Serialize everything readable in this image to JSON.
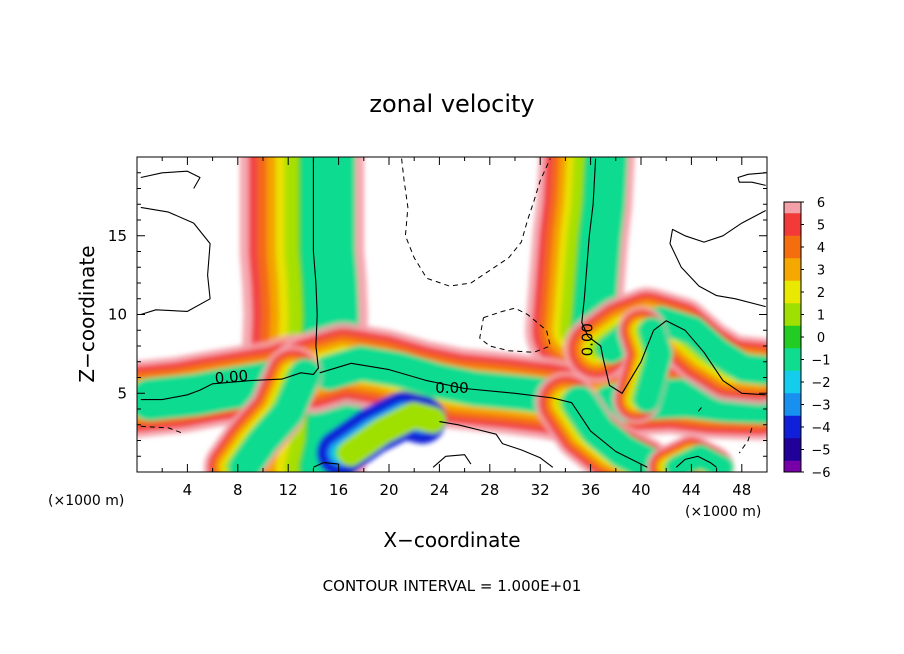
{
  "chart_data": {
    "type": "heatmap",
    "title": "zonal velocity",
    "xlabel": "X−coordinate",
    "ylabel": "Z−coordinate",
    "x_unit_label": "(×1000 m)",
    "y_unit_label": "(×1000 m)",
    "footer": "CONTOUR INTERVAL = 1.000E+01",
    "xlim": [
      0,
      50
    ],
    "ylim": [
      0,
      20
    ],
    "x_ticks": [
      4,
      8,
      12,
      16,
      20,
      24,
      28,
      32,
      36,
      40,
      44,
      48
    ],
    "x_tick_labels": [
      "4",
      "8",
      "12",
      "16",
      "20",
      "24",
      "28",
      "32",
      "36",
      "40",
      "44",
      "48"
    ],
    "y_ticks": [
      5,
      10,
      15
    ],
    "y_tick_labels": [
      "5",
      "10",
      "15"
    ],
    "contour_labels": [
      {
        "text": "0.00",
        "x": 7.5,
        "y": 6.0,
        "rotate": -5
      },
      {
        "text": "0.00",
        "x": 25.0,
        "y": 5.3,
        "rotate": 0
      },
      {
        "text": "0.00",
        "x": 35.8,
        "y": 8.4,
        "rotate": -90
      }
    ],
    "colorbar": {
      "levels": [
        6,
        5,
        4,
        3,
        2,
        1,
        0,
        -1,
        -2,
        -3,
        -4,
        -5,
        -6
      ],
      "labels": [
        "6",
        "5",
        "4",
        "3",
        "2",
        "1",
        "0",
        "−1",
        "−2",
        "−3",
        "−4",
        "−5",
        "−6"
      ],
      "colors": [
        "#f4a0a8",
        "#f23a38",
        "#f46e10",
        "#f4a800",
        "#e8e800",
        "#a0e000",
        "#22cc22",
        "#10dc90",
        "#14ccec",
        "#1890f0",
        "#1020d8",
        "#200098",
        "#7800a8"
      ]
    },
    "bands": [
      {
        "name": "left-vertical-plume",
        "center": [
          [
            14.0,
            0.3
          ],
          [
            14.5,
            2
          ],
          [
            14.6,
            4
          ],
          [
            14.4,
            6
          ],
          [
            14.2,
            8
          ],
          [
            14.3,
            10
          ],
          [
            14.2,
            12
          ],
          [
            14.0,
            14
          ],
          [
            14.0,
            16
          ],
          [
            14.0,
            17.5
          ],
          [
            14.0,
            19.9
          ]
        ],
        "width": 2.6,
        "minus": 3
      },
      {
        "name": "right-vertical-plume",
        "center": [
          [
            37.5,
            5
          ],
          [
            37.0,
            7
          ],
          [
            36.8,
            8
          ],
          [
            35.3,
            9
          ],
          [
            35.5,
            11
          ],
          [
            35.7,
            13
          ],
          [
            35.9,
            15
          ],
          [
            36.2,
            17
          ],
          [
            36.4,
            19.9
          ]
        ],
        "width": 2.0,
        "minus": 3
      },
      {
        "name": "lower-left-arm",
        "center": [
          [
            0.3,
            4.6
          ],
          [
            4,
            4.9
          ],
          [
            6,
            5.2
          ],
          [
            9,
            5.6
          ],
          [
            11.5,
            5.9
          ],
          [
            13.0,
            6.3
          ],
          [
            14.5,
            6.3
          ]
        ],
        "width": 1.6,
        "minus": 4
      },
      {
        "name": "mid-horizontal-jet",
        "center": [
          [
            14.5,
            6.3
          ],
          [
            17,
            6.9
          ],
          [
            20,
            6.5
          ],
          [
            23,
            5.8
          ],
          [
            26,
            5.3
          ],
          [
            30,
            5.0
          ],
          [
            33,
            4.7
          ],
          [
            35,
            4.4
          ],
          [
            37,
            4.3
          ]
        ],
        "width": 1.7,
        "minus": 3
      },
      {
        "name": "right-lower-arm",
        "center": [
          [
            37,
            4.3
          ],
          [
            40,
            4.6
          ],
          [
            43,
            4.7
          ],
          [
            46,
            4.4
          ],
          [
            49.9,
            4.3
          ]
        ],
        "width": 1.5,
        "minus": 4
      },
      {
        "name": "right-diagonal-loop",
        "center": [
          [
            37.0,
            7.8
          ],
          [
            39.0,
            9.0
          ],
          [
            41.0,
            9.6
          ],
          [
            43.5,
            9.0
          ],
          [
            45.5,
            7.6
          ],
          [
            47.5,
            6.6
          ],
          [
            49.9,
            6.4
          ]
        ],
        "width": 1.4,
        "minus": 3
      },
      {
        "name": "right-inner-arm",
        "center": [
          [
            40,
            4.6
          ],
          [
            40.5,
            6
          ],
          [
            41.0,
            7.5
          ],
          [
            40.4,
            9.0
          ]
        ],
        "width": 1.0,
        "minus": 4
      },
      {
        "name": "diagonal-lower-right",
        "center": [
          [
            34.5,
            4.4
          ],
          [
            36.0,
            2.6
          ],
          [
            38.0,
            1.3
          ],
          [
            40.5,
            0.3
          ]
        ],
        "width": 1.3,
        "minus": 4
      },
      {
        "name": "lower-left-diagonal",
        "center": [
          [
            12.8,
            6.2
          ],
          [
            11.5,
            3.8
          ],
          [
            9.5,
            2.0
          ],
          [
            8.0,
            0.3
          ]
        ],
        "width": 1.2,
        "minus": 4
      },
      {
        "name": "bottom-right-dome",
        "center": [
          [
            42.5,
            0.3
          ],
          [
            44.3,
            1.0
          ],
          [
            46.0,
            0.3
          ]
        ],
        "width": 0.9,
        "minus": 4
      },
      {
        "name": "lower-center-blob",
        "center": [
          [
            16.5,
            1.2
          ],
          [
            19,
            2.6
          ],
          [
            21.5,
            3.6
          ],
          [
            23,
            3.3
          ]
        ],
        "width": 1.0,
        "minus": -4
      }
    ],
    "solid_contours": [
      [
        [
          14.0,
          19.9
        ],
        [
          14.0,
          17.5
        ],
        [
          14.0,
          14
        ],
        [
          14.2,
          12
        ],
        [
          14.3,
          10
        ],
        [
          14.2,
          8
        ],
        [
          14.4,
          6.6
        ],
        [
          14.0,
          6.2
        ],
        [
          13.0,
          6.3
        ],
        [
          11.5,
          5.9
        ],
        [
          9,
          5.8
        ],
        [
          6,
          5.6
        ],
        [
          5,
          5.2
        ],
        [
          4,
          4.9
        ],
        [
          2,
          4.6
        ],
        [
          0.3,
          4.6
        ]
      ],
      [
        [
          14.5,
          6.3
        ],
        [
          17,
          6.9
        ],
        [
          20,
          6.5
        ],
        [
          23,
          5.8
        ],
        [
          26,
          5.3
        ],
        [
          30,
          5.0
        ],
        [
          33,
          4.7
        ],
        [
          34.5,
          4.4
        ],
        [
          36.0,
          2.6
        ],
        [
          38.0,
          1.3
        ],
        [
          40.5,
          0.3
        ]
      ],
      [
        [
          36.4,
          19.9
        ],
        [
          36.2,
          17
        ],
        [
          35.9,
          15
        ],
        [
          35.7,
          13
        ],
        [
          35.5,
          11
        ],
        [
          35.3,
          9.5
        ],
        [
          35.8,
          8.6
        ],
        [
          36.8,
          8.0
        ],
        [
          37.0,
          7.2
        ],
        [
          37.5,
          5.5
        ],
        [
          38.5,
          5.0
        ],
        [
          40.0,
          7.0
        ],
        [
          41.0,
          9.0
        ],
        [
          42.0,
          9.6
        ],
        [
          43.5,
          9.0
        ],
        [
          45.0,
          7.6
        ],
        [
          46.5,
          5.8
        ],
        [
          48,
          5.0
        ],
        [
          49.9,
          4.9
        ]
      ],
      [
        [
          14.0,
          0.3
        ],
        [
          14.8,
          0.6
        ],
        [
          16.0,
          0.5
        ]
      ],
      [
        [
          42.8,
          0.3
        ],
        [
          43.5,
          0.8
        ],
        [
          44.5,
          1.0
        ],
        [
          45.5,
          0.6
        ],
        [
          46.0,
          0.3
        ]
      ],
      [
        [
          0.3,
          16.8
        ],
        [
          2.5,
          16.5
        ],
        [
          4.5,
          15.8
        ],
        [
          5.8,
          14.5
        ],
        [
          5.6,
          12.5
        ],
        [
          5.8,
          11.0
        ],
        [
          4.0,
          10.2
        ],
        [
          1.5,
          10.3
        ],
        [
          0.3,
          10.0
        ]
      ],
      [
        [
          0.3,
          18.7
        ],
        [
          2.0,
          19.0
        ],
        [
          4.0,
          19.1
        ],
        [
          5.0,
          18.7
        ],
        [
          4.5,
          18.0
        ]
      ],
      [
        [
          49.9,
          16.6
        ],
        [
          48.0,
          15.8
        ],
        [
          46.5,
          15.0
        ],
        [
          45.0,
          14.6
        ],
        [
          43.5,
          15.0
        ],
        [
          42.5,
          15.4
        ],
        [
          42.3,
          14.5
        ],
        [
          43.2,
          13.0
        ],
        [
          44.6,
          11.8
        ],
        [
          46.0,
          11.2
        ],
        [
          47.5,
          11.0
        ],
        [
          49.9,
          10.5
        ]
      ],
      [
        [
          49.9,
          19.0
        ],
        [
          48.5,
          18.9
        ],
        [
          47.7,
          18.7
        ],
        [
          47.8,
          18.4
        ],
        [
          48.8,
          18.4
        ],
        [
          49.9,
          18.2
        ]
      ],
      [
        [
          24.0,
          3.2
        ],
        [
          25.5,
          3.0
        ],
        [
          27.0,
          2.7
        ],
        [
          28.5,
          2.4
        ],
        [
          29.0,
          1.8
        ],
        [
          30.5,
          1.4
        ],
        [
          32.0,
          0.9
        ],
        [
          33.0,
          0.3
        ]
      ],
      [
        [
          23.5,
          0.3
        ],
        [
          24.5,
          1.0
        ],
        [
          26.0,
          1.1
        ],
        [
          26.5,
          0.5
        ]
      ]
    ],
    "dashed_contours": [
      [
        [
          21.0,
          19.9
        ],
        [
          21.2,
          18.5
        ],
        [
          21.5,
          16.8
        ],
        [
          21.3,
          15.0
        ],
        [
          22.0,
          13.6
        ],
        [
          23.0,
          12.3
        ],
        [
          24.8,
          11.8
        ],
        [
          26.5,
          12.0
        ],
        [
          28.0,
          12.8
        ],
        [
          29.5,
          13.6
        ],
        [
          30.5,
          14.6
        ],
        [
          31.0,
          16.0
        ],
        [
          31.5,
          17.2
        ],
        [
          32.0,
          18.5
        ],
        [
          32.8,
          19.9
        ]
      ],
      [
        [
          27.5,
          9.8
        ],
        [
          29.0,
          10.2
        ],
        [
          30.0,
          10.4
        ],
        [
          31.0,
          10.0
        ],
        [
          32.5,
          9.0
        ],
        [
          32.8,
          8.0
        ],
        [
          31.5,
          7.6
        ],
        [
          29.5,
          7.7
        ],
        [
          28.0,
          8.0
        ],
        [
          27.2,
          8.5
        ],
        [
          27.5,
          9.8
        ]
      ],
      [
        [
          0.3,
          2.9
        ],
        [
          2.5,
          2.8
        ],
        [
          3.5,
          2.5
        ]
      ],
      [
        [
          48.8,
          2.8
        ],
        [
          48.5,
          2.0
        ],
        [
          47.8,
          1.2
        ]
      ],
      [
        [
          44.8,
          4.1
        ],
        [
          44.5,
          3.8
        ]
      ]
    ]
  }
}
